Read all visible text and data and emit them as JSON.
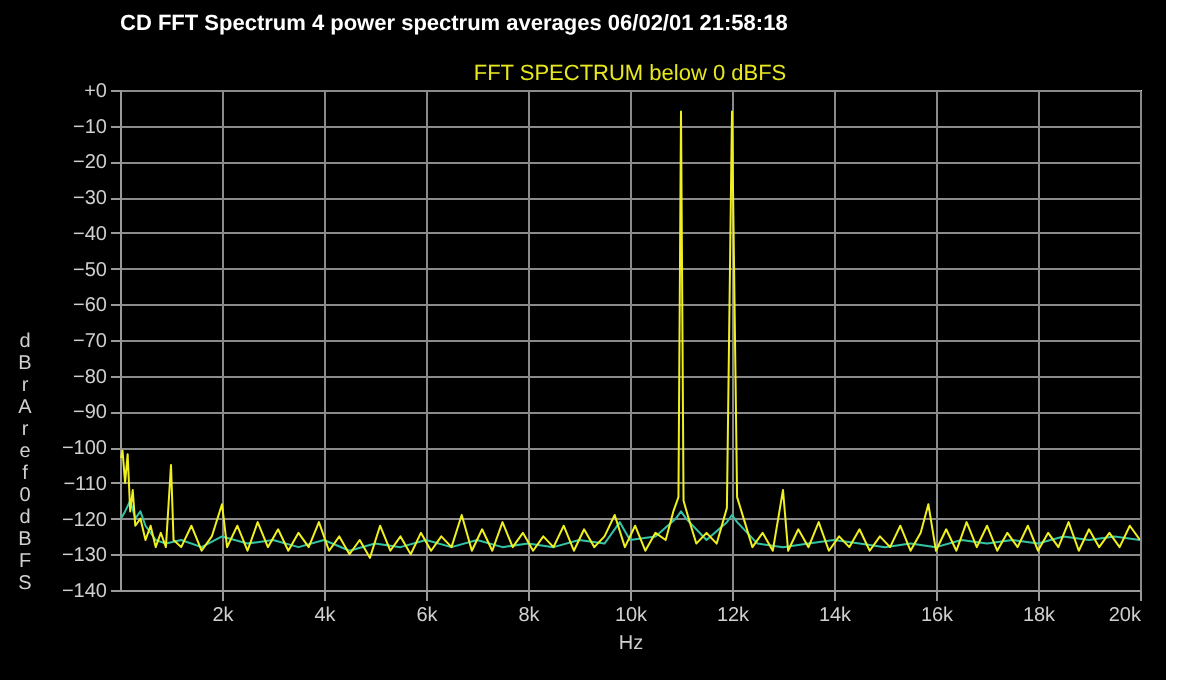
{
  "chart_data": {
    "type": "line",
    "title": "CD  FFT Spectrum      4 power spectrum averages  06/02/01 21:58:18",
    "subtitle": "FFT SPECTRUM  below 0 dBFS",
    "xlabel": "Hz",
    "ylabel": "dBr A ref 0 dBFS",
    "xlim": [
      0,
      20000
    ],
    "xticks": [
      {
        "value": 2000,
        "label": "2k"
      },
      {
        "value": 4000,
        "label": "4k"
      },
      {
        "value": 6000,
        "label": "6k"
      },
      {
        "value": 8000,
        "label": "8k"
      },
      {
        "value": 10000,
        "label": "10k"
      },
      {
        "value": 12000,
        "label": "12k"
      },
      {
        "value": 14000,
        "label": "14k"
      },
      {
        "value": 16000,
        "label": "16k"
      },
      {
        "value": 18000,
        "label": "18k"
      },
      {
        "value": 20000,
        "label": "20k"
      }
    ],
    "ylim": [
      -140,
      0
    ],
    "yticks": [
      {
        "value": 0,
        "label": "+0"
      },
      -10,
      -20,
      -30,
      -40,
      -50,
      -60,
      -70,
      -80,
      -90,
      -100,
      -110,
      -120,
      -130,
      -140
    ],
    "grid": true,
    "legend": false,
    "marker": "none",
    "line_style": "solid",
    "series": [
      {
        "color": "#33c4a8",
        "x": [
          20,
          100,
          200,
          300,
          400,
          500,
          700,
          900,
          1200,
          1600,
          2000,
          2500,
          3000,
          3500,
          4000,
          4500,
          5000,
          5500,
          6000,
          6500,
          7000,
          7500,
          8000,
          8500,
          9000,
          9500,
          9800,
          10000,
          10500,
          10900,
          11000,
          11100,
          11500,
          11900,
          12000,
          12100,
          12500,
          13000,
          13500,
          14000,
          14500,
          15000,
          15500,
          16000,
          16500,
          17000,
          17500,
          18000,
          18500,
          19000,
          19500,
          20000
        ],
        "values": [
          -120,
          -118,
          -115,
          -120,
          -118,
          -122,
          -126,
          -127,
          -126,
          -128,
          -125,
          -127,
          -126,
          -128,
          -126,
          -129,
          -127,
          -128,
          -126,
          -128,
          -126,
          -128,
          -127,
          -128,
          -126,
          -127,
          -121,
          -126,
          -125,
          -120,
          -118,
          -120,
          -126,
          -121,
          -119,
          -121,
          -127,
          -128,
          -127,
          -126,
          -127,
          -128,
          -127,
          -128,
          -126,
          -127,
          -126,
          -127,
          -125,
          -126,
          -125,
          -126
        ]
      },
      {
        "color": "#f0f020",
        "x": [
          20,
          50,
          100,
          150,
          200,
          250,
          300,
          400,
          500,
          600,
          700,
          800,
          900,
          1000,
          1050,
          1200,
          1400,
          1600,
          1800,
          2000,
          2100,
          2300,
          2500,
          2700,
          2900,
          3100,
          3300,
          3500,
          3700,
          3900,
          4100,
          4300,
          4500,
          4700,
          4900,
          5100,
          5300,
          5500,
          5700,
          5900,
          6100,
          6300,
          6500,
          6700,
          6900,
          7100,
          7300,
          7500,
          7700,
          7900,
          8100,
          8300,
          8500,
          8700,
          8900,
          9100,
          9300,
          9500,
          9700,
          9900,
          10100,
          10300,
          10500,
          10700,
          10850,
          10950,
          11000,
          11050,
          11150,
          11300,
          11500,
          11700,
          11900,
          12000,
          12100,
          12250,
          12400,
          12600,
          12800,
          13000,
          13100,
          13300,
          13500,
          13700,
          13900,
          14100,
          14300,
          14500,
          14700,
          14900,
          15100,
          15300,
          15500,
          15700,
          15850,
          16000,
          16200,
          16400,
          16600,
          16800,
          17000,
          17200,
          17400,
          17600,
          17800,
          18000,
          18200,
          18400,
          18600,
          18800,
          19000,
          19200,
          19400,
          19600,
          19800,
          20000
        ],
        "values": [
          -103,
          -101,
          -110,
          -102,
          -118,
          -112,
          -122,
          -120,
          -126,
          -122,
          -128,
          -124,
          -128,
          -105,
          -126,
          -128,
          -122,
          -129,
          -125,
          -116,
          -128,
          -122,
          -129,
          -121,
          -128,
          -123,
          -129,
          -124,
          -128,
          -121,
          -129,
          -125,
          -130,
          -126,
          -131,
          -122,
          -129,
          -125,
          -130,
          -124,
          -129,
          -125,
          -128,
          -119,
          -129,
          -123,
          -129,
          -121,
          -128,
          -124,
          -129,
          -125,
          -128,
          -122,
          -129,
          -123,
          -128,
          -125,
          -119,
          -128,
          -122,
          -129,
          -124,
          -126,
          -118,
          -114,
          -6,
          -115,
          -120,
          -127,
          -124,
          -127,
          -117,
          -6,
          -114,
          -121,
          -128,
          -124,
          -129,
          -112,
          -129,
          -123,
          -128,
          -121,
          -129,
          -125,
          -128,
          -123,
          -129,
          -125,
          -128,
          -122,
          -129,
          -124,
          -116,
          -129,
          -123,
          -129,
          -121,
          -128,
          -122,
          -129,
          -124,
          -128,
          -122,
          -129,
          -124,
          -128,
          -121,
          -129,
          -123,
          -128,
          -124,
          -128,
          -122,
          -126
        ]
      }
    ]
  }
}
